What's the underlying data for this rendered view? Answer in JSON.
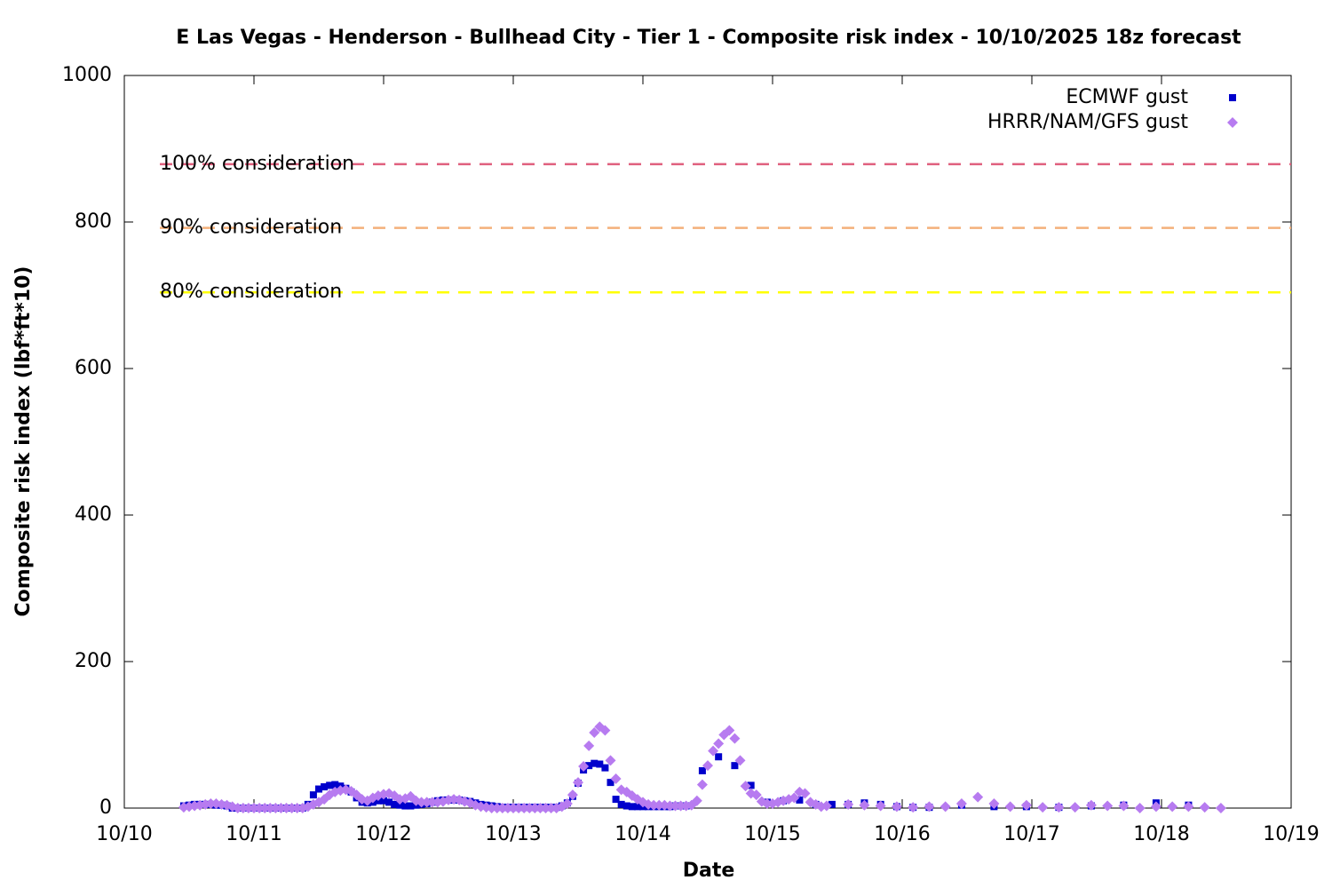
{
  "chart_data": {
    "type": "scatter",
    "title": "E Las Vegas - Henderson - Bullhead City - Tier 1 - Composite risk index - 10/10/2025 18z forecast",
    "x_label": "Date",
    "y_label": "Composite risk index (lbf*ft*10)",
    "xlim": [
      0,
      216
    ],
    "xticks": [
      {
        "value": 0,
        "label": "10/10"
      },
      {
        "value": 24,
        "label": "10/11"
      },
      {
        "value": 48,
        "label": "10/12"
      },
      {
        "value": 72,
        "label": "10/13"
      },
      {
        "value": 96,
        "label": "10/14"
      },
      {
        "value": 120,
        "label": "10/15"
      },
      {
        "value": 144,
        "label": "10/16"
      },
      {
        "value": 168,
        "label": "10/17"
      },
      {
        "value": 192,
        "label": "10/18"
      },
      {
        "value": 216,
        "label": "10/19"
      }
    ],
    "ylim": [
      0,
      1000
    ],
    "yticks": [
      0,
      200,
      400,
      600,
      800,
      1000
    ],
    "legend": "top-right",
    "thresholds": [
      {
        "label": "100% consideration",
        "value": 879,
        "color": "#e0607e"
      },
      {
        "label": "90% consideration",
        "value": 792,
        "color": "#f4b07a"
      },
      {
        "label": "80% consideration",
        "value": 704,
        "color": "#ffff00"
      }
    ],
    "series": [
      {
        "name": "ECMWF gust",
        "color": "#0000cc",
        "marker": "square",
        "x": [
          11,
          12,
          13,
          14,
          15,
          16,
          17,
          18,
          19,
          20,
          21,
          22,
          23,
          24,
          25,
          26,
          27,
          28,
          29,
          30,
          31,
          32,
          33,
          34,
          35,
          36,
          37,
          38,
          39,
          40,
          41,
          42,
          43,
          44,
          45,
          46,
          47,
          48,
          49,
          50,
          51,
          52,
          53,
          54,
          55,
          56,
          57,
          58,
          59,
          60,
          61,
          62,
          63,
          64,
          65,
          66,
          67,
          68,
          69,
          70,
          71,
          72,
          73,
          74,
          75,
          76,
          77,
          78,
          79,
          80,
          81,
          82,
          83,
          84,
          85,
          86,
          87,
          88,
          89,
          90,
          91,
          92,
          93,
          94,
          95,
          96,
          97,
          98,
          99,
          100,
          101,
          102,
          103,
          104,
          107,
          110,
          113,
          116,
          119,
          122,
          125,
          128,
          131,
          134,
          137,
          140,
          143,
          146,
          149,
          155,
          161,
          167,
          173,
          179,
          185,
          191,
          197
        ],
        "values": [
          3,
          4,
          5,
          5,
          5,
          5,
          4,
          4,
          3,
          0,
          0,
          0,
          0,
          0,
          0,
          0,
          0,
          0,
          0,
          0,
          0,
          0,
          0,
          5,
          18,
          26,
          29,
          31,
          32,
          30,
          27,
          22,
          14,
          8,
          7,
          8,
          10,
          10,
          8,
          5,
          4,
          3,
          3,
          4,
          5,
          6,
          8,
          10,
          11,
          11,
          11,
          11,
          10,
          9,
          7,
          5,
          4,
          3,
          2,
          1,
          1,
          1,
          1,
          1,
          1,
          1,
          1,
          1,
          1,
          1,
          3,
          7,
          16,
          34,
          52,
          58,
          61,
          60,
          55,
          35,
          12,
          5,
          3,
          2,
          2,
          2,
          2,
          2,
          2,
          2,
          2,
          3,
          3,
          3,
          51,
          70,
          58,
          31,
          8,
          10,
          11,
          5,
          5,
          5,
          7,
          5,
          2,
          1,
          1,
          4,
          2,
          2,
          1,
          3,
          4,
          7,
          4
        ]
      },
      {
        "name": "HRRR/NAM/GFS gust",
        "color": "#b77bf0",
        "marker": "diamond",
        "x": [
          11,
          12,
          13,
          14,
          15,
          16,
          17,
          18,
          19,
          20,
          21,
          22,
          23,
          24,
          25,
          26,
          27,
          28,
          29,
          30,
          31,
          32,
          33,
          34,
          35,
          36,
          37,
          38,
          39,
          40,
          41,
          42,
          43,
          44,
          45,
          46,
          47,
          48,
          49,
          50,
          51,
          52,
          53,
          54,
          55,
          56,
          57,
          58,
          59,
          60,
          61,
          62,
          63,
          64,
          65,
          66,
          67,
          68,
          69,
          70,
          71,
          72,
          73,
          74,
          75,
          76,
          77,
          78,
          79,
          80,
          81,
          82,
          83,
          84,
          85,
          86,
          87,
          88,
          89,
          90,
          91,
          92,
          93,
          94,
          95,
          96,
          97,
          98,
          99,
          100,
          101,
          102,
          103,
          104,
          105,
          106,
          107,
          108,
          109,
          110,
          111,
          112,
          113,
          114,
          115,
          116,
          117,
          118,
          119,
          120,
          121,
          122,
          123,
          124,
          125,
          126,
          127,
          128,
          129,
          130,
          134,
          137,
          140,
          143,
          146,
          149,
          152,
          155,
          158,
          161,
          164,
          167,
          170,
          173,
          176,
          179,
          182,
          185,
          188,
          191,
          194,
          197,
          200,
          203
        ],
        "values": [
          1,
          2,
          3,
          4,
          5,
          6,
          6,
          5,
          4,
          2,
          0,
          0,
          0,
          0,
          0,
          0,
          0,
          0,
          0,
          0,
          0,
          0,
          0,
          2,
          5,
          8,
          12,
          18,
          22,
          24,
          25,
          23,
          18,
          12,
          10,
          14,
          17,
          19,
          20,
          17,
          12,
          13,
          16,
          10,
          8,
          8,
          8,
          8,
          9,
          11,
          12,
          11,
          9,
          7,
          4,
          2,
          1,
          0,
          0,
          0,
          0,
          0,
          0,
          0,
          0,
          0,
          0,
          0,
          0,
          0,
          2,
          6,
          18,
          35,
          57,
          85,
          103,
          111,
          106,
          65,
          40,
          25,
          22,
          17,
          12,
          8,
          5,
          4,
          4,
          4,
          3,
          3,
          3,
          3,
          4,
          10,
          32,
          58,
          78,
          88,
          100,
          106,
          95,
          65,
          30,
          20,
          18,
          9,
          6,
          6,
          8,
          10,
          12,
          14,
          22,
          20,
          8,
          5,
          2,
          3,
          5,
          4,
          3,
          2,
          1,
          2,
          2,
          6,
          15,
          6,
          2,
          4,
          1,
          1,
          1,
          4,
          3,
          3,
          0,
          2,
          2,
          2,
          1,
          0
        ]
      }
    ]
  }
}
